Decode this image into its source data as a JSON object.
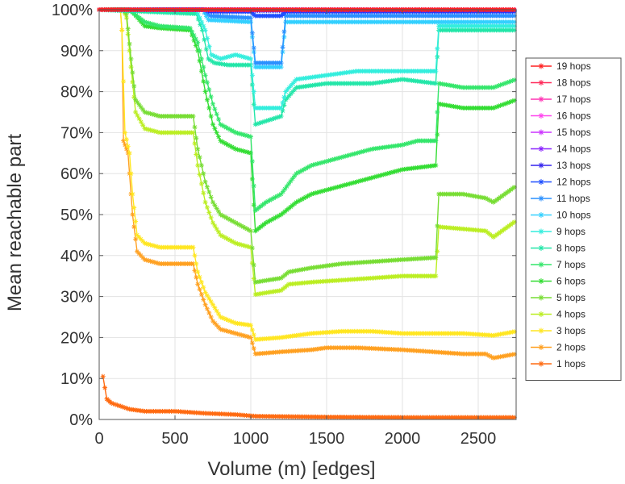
{
  "chart_data": {
    "type": "line",
    "title": "",
    "xlabel": "Volume (m) [edges]",
    "ylabel": "Mean reachable part",
    "xlim": [
      0,
      2750
    ],
    "ylim": [
      0,
      100
    ],
    "xticks": [
      0,
      500,
      1000,
      1500,
      2000,
      2500
    ],
    "yticks": [
      0,
      10,
      20,
      30,
      40,
      50,
      60,
      70,
      80,
      90,
      100
    ],
    "ytick_labels": [
      "0%",
      "10%",
      "20%",
      "30%",
      "40%",
      "50%",
      "60%",
      "70%",
      "80%",
      "90%",
      "100%"
    ],
    "xtick_labels": [
      "0",
      "500",
      "1000",
      "1500",
      "2000",
      "2500"
    ],
    "grid": true,
    "legend_position": "right",
    "marker": "asterisk",
    "series": [
      {
        "name": "19 hops",
        "color": "#ff2020",
        "points": [
          [
            0,
            100
          ],
          [
            2750,
            100
          ]
        ]
      },
      {
        "name": "18 hops",
        "color": "#ff2a5a",
        "points": [
          [
            0,
            100
          ],
          [
            2750,
            100
          ]
        ]
      },
      {
        "name": "17 hops",
        "color": "#ff33b4",
        "points": [
          [
            0,
            100
          ],
          [
            2750,
            100
          ]
        ]
      },
      {
        "name": "16 hops",
        "color": "#ff44ee",
        "points": [
          [
            0,
            100
          ],
          [
            2750,
            100
          ]
        ]
      },
      {
        "name": "15 hops",
        "color": "#cc33ff",
        "points": [
          [
            0,
            100
          ],
          [
            2750,
            100
          ]
        ]
      },
      {
        "name": "14 hops",
        "color": "#8a22ff",
        "points": [
          [
            0,
            100
          ],
          [
            700,
            100
          ],
          [
            2750,
            100
          ]
        ]
      },
      {
        "name": "13 hops",
        "color": "#3322ee",
        "points": [
          [
            0,
            100
          ],
          [
            700,
            100
          ],
          [
            720,
            99.8
          ],
          [
            2750,
            99.8
          ]
        ]
      },
      {
        "name": "12 hops",
        "color": "#1f4fff",
        "points": [
          [
            0,
            100
          ],
          [
            700,
            100
          ],
          [
            730,
            99.5
          ],
          [
            1000,
            99.5
          ],
          [
            1030,
            98.5
          ],
          [
            1200,
            98.5
          ],
          [
            1230,
            99.5
          ],
          [
            2750,
            99.5
          ]
        ]
      },
      {
        "name": "11 hops",
        "color": "#2a90ff",
        "points": [
          [
            0,
            100
          ],
          [
            690,
            100
          ],
          [
            730,
            98.5
          ],
          [
            1000,
            98
          ],
          [
            1030,
            87
          ],
          [
            1200,
            87
          ],
          [
            1230,
            98.5
          ],
          [
            2750,
            98.5
          ]
        ]
      },
      {
        "name": "10 hops",
        "color": "#33d0ff",
        "points": [
          [
            0,
            100
          ],
          [
            680,
            100
          ],
          [
            720,
            97.5
          ],
          [
            1000,
            97
          ],
          [
            1030,
            86
          ],
          [
            1200,
            86
          ],
          [
            1230,
            97
          ],
          [
            2750,
            97
          ]
        ]
      },
      {
        "name": "9 hops",
        "color": "#33eedd",
        "points": [
          [
            0,
            100
          ],
          [
            640,
            100
          ],
          [
            700,
            95
          ],
          [
            740,
            89
          ],
          [
            800,
            88
          ],
          [
            900,
            89
          ],
          [
            1000,
            88
          ],
          [
            1030,
            76
          ],
          [
            1200,
            76
          ],
          [
            1230,
            80
          ],
          [
            1300,
            83
          ],
          [
            1500,
            84
          ],
          [
            1700,
            85
          ],
          [
            2000,
            85
          ],
          [
            2220,
            85
          ],
          [
            2240,
            96
          ],
          [
            2750,
            96
          ]
        ]
      },
      {
        "name": "8 hops",
        "color": "#22e6a8",
        "points": [
          [
            0,
            100
          ],
          [
            640,
            99
          ],
          [
            680,
            95
          ],
          [
            720,
            88
          ],
          [
            760,
            87
          ],
          [
            850,
            86.5
          ],
          [
            1000,
            86.5
          ],
          [
            1030,
            72
          ],
          [
            1200,
            74
          ],
          [
            1230,
            78
          ],
          [
            1300,
            81
          ],
          [
            1500,
            82
          ],
          [
            1800,
            82
          ],
          [
            2000,
            83
          ],
          [
            2220,
            82
          ],
          [
            2240,
            95
          ],
          [
            2750,
            95
          ]
        ]
      },
      {
        "name": "7 hops",
        "color": "#33e66a",
        "points": [
          [
            0,
            100
          ],
          [
            200,
            100
          ],
          [
            230,
            99
          ],
          [
            300,
            97
          ],
          [
            400,
            96
          ],
          [
            600,
            95.5
          ],
          [
            650,
            92
          ],
          [
            700,
            84
          ],
          [
            750,
            77
          ],
          [
            800,
            72
          ],
          [
            900,
            70
          ],
          [
            1000,
            69
          ],
          [
            1030,
            51
          ],
          [
            1100,
            53
          ],
          [
            1200,
            55
          ],
          [
            1300,
            60
          ],
          [
            1400,
            62
          ],
          [
            1500,
            63
          ],
          [
            1600,
            64
          ],
          [
            1800,
            66
          ],
          [
            2000,
            67
          ],
          [
            2100,
            68
          ],
          [
            2220,
            68
          ],
          [
            2240,
            82
          ],
          [
            2400,
            81
          ],
          [
            2600,
            81
          ],
          [
            2750,
            83
          ]
        ]
      },
      {
        "name": "6 hops",
        "color": "#33dd33",
        "points": [
          [
            0,
            100
          ],
          [
            200,
            100
          ],
          [
            230,
            99
          ],
          [
            300,
            96
          ],
          [
            400,
            95.5
          ],
          [
            600,
            95
          ],
          [
            650,
            90
          ],
          [
            700,
            80
          ],
          [
            750,
            72
          ],
          [
            800,
            68
          ],
          [
            900,
            66
          ],
          [
            1000,
            65
          ],
          [
            1030,
            46
          ],
          [
            1100,
            48
          ],
          [
            1200,
            50
          ],
          [
            1300,
            53
          ],
          [
            1400,
            55
          ],
          [
            1500,
            56
          ],
          [
            1700,
            58
          ],
          [
            1900,
            60
          ],
          [
            2000,
            61
          ],
          [
            2220,
            62
          ],
          [
            2240,
            77
          ],
          [
            2400,
            76
          ],
          [
            2600,
            76
          ],
          [
            2750,
            78
          ]
        ]
      },
      {
        "name": "5 hops",
        "color": "#77dd33",
        "points": [
          [
            0,
            100
          ],
          [
            160,
            100
          ],
          [
            180,
            99
          ],
          [
            210,
            88
          ],
          [
            240,
            78
          ],
          [
            300,
            75
          ],
          [
            400,
            74
          ],
          [
            620,
            74
          ],
          [
            650,
            66
          ],
          [
            700,
            58
          ],
          [
            750,
            53
          ],
          [
            800,
            50
          ],
          [
            900,
            48
          ],
          [
            1000,
            46
          ],
          [
            1030,
            33.5
          ],
          [
            1200,
            34.5
          ],
          [
            1250,
            36
          ],
          [
            1400,
            37
          ],
          [
            1600,
            38
          ],
          [
            1800,
            38.5
          ],
          [
            2000,
            39
          ],
          [
            2220,
            39.5
          ],
          [
            2240,
            55
          ],
          [
            2400,
            55
          ],
          [
            2550,
            54
          ],
          [
            2600,
            53
          ],
          [
            2750,
            57
          ]
        ]
      },
      {
        "name": "4 hops",
        "color": "#bbee22",
        "points": [
          [
            0,
            100
          ],
          [
            160,
            100
          ],
          [
            180,
            98
          ],
          [
            210,
            86
          ],
          [
            240,
            75
          ],
          [
            300,
            71
          ],
          [
            400,
            70
          ],
          [
            620,
            70
          ],
          [
            650,
            62
          ],
          [
            700,
            53
          ],
          [
            750,
            48
          ],
          [
            800,
            45
          ],
          [
            900,
            43
          ],
          [
            1000,
            42
          ],
          [
            1030,
            30.5
          ],
          [
            1200,
            31.5
          ],
          [
            1250,
            33
          ],
          [
            1400,
            33.5
          ],
          [
            1600,
            34
          ],
          [
            1800,
            34.5
          ],
          [
            2000,
            35
          ],
          [
            2220,
            35
          ],
          [
            2240,
            47
          ],
          [
            2400,
            46.5
          ],
          [
            2550,
            46
          ],
          [
            2600,
            44.5
          ],
          [
            2750,
            48.5
          ]
        ]
      },
      {
        "name": "3 hops",
        "color": "#ffe620",
        "points": [
          [
            0,
            100
          ],
          [
            140,
            100
          ],
          [
            150,
            95
          ],
          [
            170,
            70
          ],
          [
            200,
            65
          ],
          [
            220,
            55
          ],
          [
            250,
            45
          ],
          [
            300,
            43
          ],
          [
            400,
            42
          ],
          [
            620,
            42
          ],
          [
            650,
            36
          ],
          [
            700,
            31
          ],
          [
            750,
            28
          ],
          [
            800,
            25
          ],
          [
            900,
            23.5
          ],
          [
            1000,
            23
          ],
          [
            1030,
            19.5
          ],
          [
            1200,
            20
          ],
          [
            1300,
            20.5
          ],
          [
            1400,
            21
          ],
          [
            1600,
            21.5
          ],
          [
            1800,
            21.5
          ],
          [
            2000,
            21
          ],
          [
            2200,
            21
          ],
          [
            2400,
            21
          ],
          [
            2600,
            20.5
          ],
          [
            2750,
            21.5
          ]
        ]
      },
      {
        "name": "2 hops",
        "color": "#ffa020",
        "points": [
          [
            0,
            100
          ],
          [
            140,
            100
          ],
          [
            150,
            95
          ],
          [
            160,
            68
          ],
          [
            190,
            65
          ],
          [
            220,
            50
          ],
          [
            250,
            41
          ],
          [
            300,
            39
          ],
          [
            400,
            38
          ],
          [
            620,
            38
          ],
          [
            650,
            33
          ],
          [
            700,
            28
          ],
          [
            750,
            24
          ],
          [
            800,
            22
          ],
          [
            900,
            21
          ],
          [
            1000,
            20
          ],
          [
            1030,
            16
          ],
          [
            1200,
            16.5
          ],
          [
            1400,
            17
          ],
          [
            1500,
            17.5
          ],
          [
            1700,
            17.5
          ],
          [
            2000,
            17
          ],
          [
            2200,
            16.5
          ],
          [
            2400,
            16
          ],
          [
            2550,
            16
          ],
          [
            2600,
            15
          ],
          [
            2750,
            16
          ]
        ]
      },
      {
        "name": "1 hops",
        "color": "#ff6a10",
        "points": [
          [
            25,
            10.5
          ],
          [
            50,
            5
          ],
          [
            80,
            4
          ],
          [
            120,
            3.5
          ],
          [
            200,
            2.5
          ],
          [
            300,
            2
          ],
          [
            500,
            2
          ],
          [
            700,
            1.5
          ],
          [
            900,
            1.2
          ],
          [
            1030,
            0.8
          ],
          [
            1500,
            0.6
          ],
          [
            2000,
            0.5
          ],
          [
            2750,
            0.5
          ]
        ]
      }
    ]
  }
}
